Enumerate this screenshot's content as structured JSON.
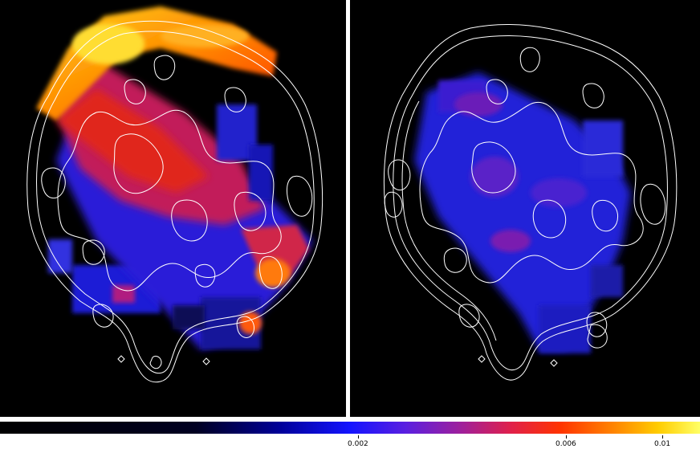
{
  "figure": {
    "panels": [
      {
        "id": "left",
        "map": "emission-map-with-contours"
      },
      {
        "id": "right",
        "map": "emission-map-with-contours"
      }
    ],
    "colormap": {
      "stops": [
        "#000000",
        "#000033",
        "#0000cc",
        "#2020ff",
        "#8a1fd0",
        "#d02060",
        "#ff2200",
        "#ff7700",
        "#ffcc00",
        "#ffff80"
      ],
      "contour_color": "#ffffff"
    },
    "colorbar": {
      "ticks": [
        {
          "label": "0.002",
          "value": 0.002
        },
        {
          "label": "0.006",
          "value": 0.006
        },
        {
          "label": "0.01",
          "value": 0.01
        }
      ]
    }
  }
}
